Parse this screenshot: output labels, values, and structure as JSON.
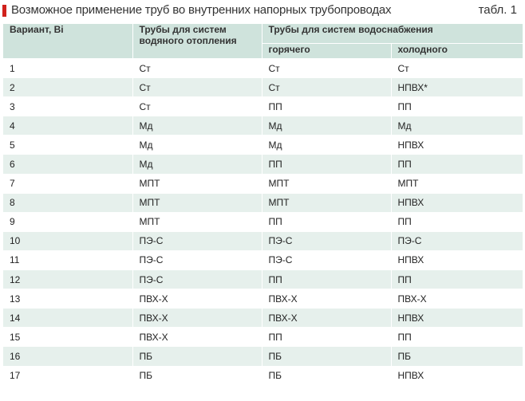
{
  "title": "Возможное применение труб во внутренних напорных трубопроводах",
  "table_ref": "табл. 1",
  "headers": {
    "variant": "Вариант, Вi",
    "heating": "Трубы для систем водяного отопления",
    "water_supply": "Трубы для систем водоснабжения",
    "hot": "горячего",
    "cold": "холодного"
  },
  "rows": [
    {
      "n": "1",
      "heating": "Ст",
      "hot": "Ст",
      "cold": "Ст"
    },
    {
      "n": "2",
      "heating": "Ст",
      "hot": "Ст",
      "cold": "НПВХ*"
    },
    {
      "n": "3",
      "heating": " Ст",
      "hot": "ПП",
      "cold": "ПП"
    },
    {
      "n": "4",
      "heating": "Мд",
      "hot": "Мд",
      "cold": "Мд"
    },
    {
      "n": "5",
      "heating": "Мд",
      "hot": "Мд",
      "cold": "НПВХ"
    },
    {
      "n": "6",
      "heating": "Мд",
      "hot": "ПП",
      "cold": "ПП"
    },
    {
      "n": "7",
      "heating": "МПТ",
      "hot": "МПТ",
      "cold": "МПТ"
    },
    {
      "n": "8",
      "heating": "МПТ",
      "hot": "МПТ",
      "cold": "НПВХ"
    },
    {
      "n": "9",
      "heating": "МПТ",
      "hot": "ПП",
      "cold": "ПП"
    },
    {
      "n": "10",
      "heating": "ПЭ-С",
      "hot": "ПЭ-С",
      "cold": "ПЭ-С"
    },
    {
      "n": "11",
      "heating": "ПЭ-С",
      "hot": "ПЭ-С",
      "cold": "НПВХ"
    },
    {
      "n": "12",
      "heating": "ПЭ-С",
      "hot": "ПП",
      "cold": "ПП"
    },
    {
      "n": "13",
      "heating": "ПВХ-Х",
      "hot": "ПВХ-Х",
      "cold": "ПВХ-Х"
    },
    {
      "n": "14",
      "heating": "ПВХ-Х",
      "hot": "ПВХ-Х",
      "cold": "НПВХ"
    },
    {
      "n": "15",
      "heating": "ПВХ-Х",
      "hot": "ПП",
      "cold": "ПП"
    },
    {
      "n": "16",
      "heating": "ПБ",
      "hot": "ПБ",
      "cold": "ПБ"
    },
    {
      "n": "17",
      "heating": "ПБ",
      "hot": "ПБ",
      "cold": "НПВХ"
    }
  ],
  "colors": {
    "accent_marker": "#d0211c",
    "header_bg": "#cfe3dc",
    "stripe_bg": "#e6f0ec"
  }
}
